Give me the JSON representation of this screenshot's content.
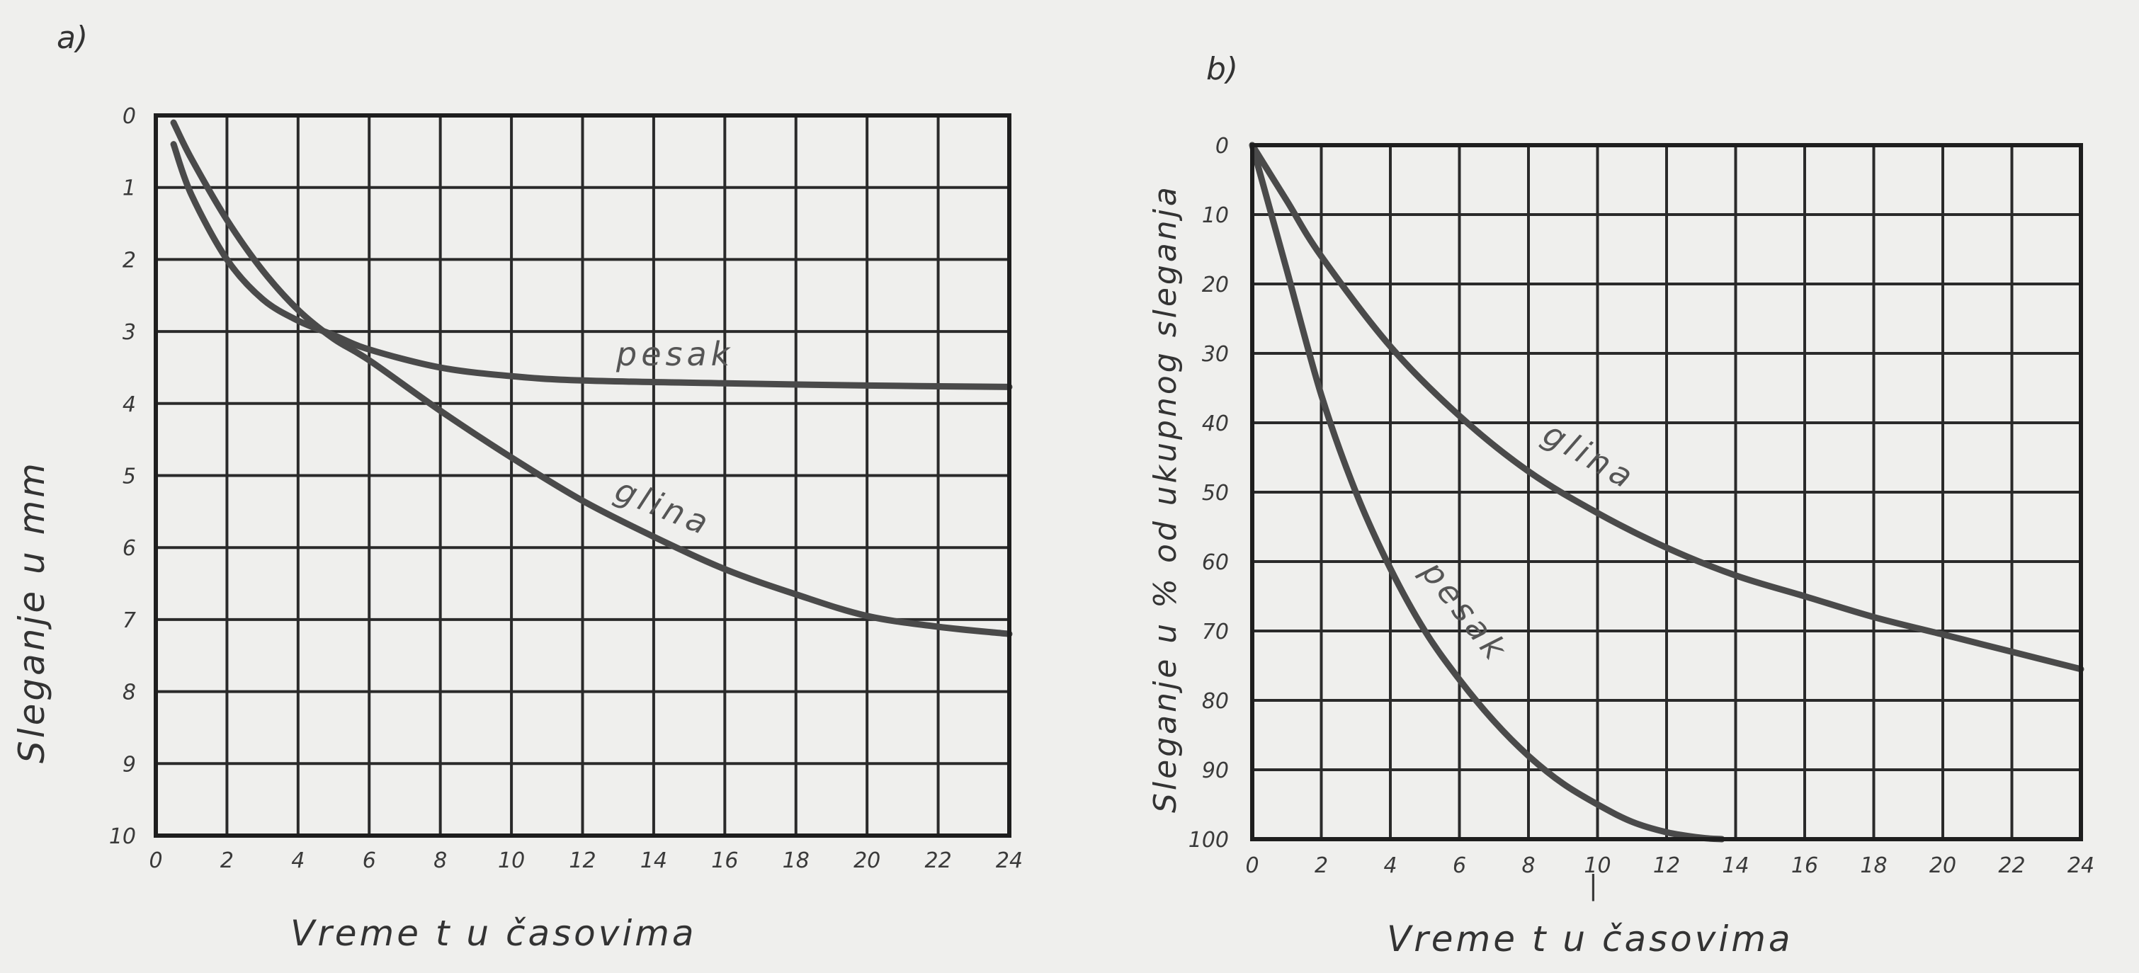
{
  "chart_data": [
    {
      "type": "line",
      "panel_label": "a)",
      "xlabel": "Vreme t u časovima",
      "ylabel": "Sleganje u mm",
      "xlim": [
        0,
        24
      ],
      "ylim": [
        0,
        10
      ],
      "y_inverted": true,
      "x_ticks": [
        0,
        2,
        4,
        6,
        8,
        10,
        12,
        14,
        16,
        18,
        20,
        22,
        24
      ],
      "y_ticks": [
        0,
        1,
        2,
        3,
        4,
        5,
        6,
        7,
        8,
        9,
        10
      ],
      "grid": true,
      "series": [
        {
          "name": "pesak",
          "x": [
            0.5,
            1,
            2,
            3,
            4,
            5,
            6,
            8,
            10,
            12,
            16,
            20,
            24
          ],
          "y": [
            0.4,
            1.1,
            2.0,
            2.55,
            2.85,
            3.05,
            3.25,
            3.5,
            3.62,
            3.68,
            3.72,
            3.75,
            3.77
          ]
        },
        {
          "name": "glina",
          "x": [
            0.5,
            1,
            2,
            3,
            4,
            5,
            6,
            8,
            10,
            12,
            14,
            16,
            18,
            20,
            22,
            24
          ],
          "y": [
            0.1,
            0.6,
            1.45,
            2.15,
            2.7,
            3.1,
            3.4,
            4.1,
            4.75,
            5.35,
            5.85,
            6.3,
            6.65,
            6.95,
            7.1,
            7.2
          ]
        }
      ]
    },
    {
      "type": "line",
      "panel_label": "b)",
      "xlabel": "Vreme t u časovima",
      "ylabel": "Sleganje u % od ukupnog sleganja",
      "xlim": [
        0,
        24
      ],
      "ylim": [
        0,
        100
      ],
      "y_inverted": true,
      "x_ticks": [
        0,
        2,
        4,
        6,
        8,
        10,
        12,
        14,
        16,
        18,
        20,
        22,
        24
      ],
      "y_ticks": [
        0,
        10,
        20,
        30,
        40,
        50,
        60,
        70,
        80,
        90,
        100
      ],
      "grid": true,
      "series": [
        {
          "name": "glina",
          "x": [
            0,
            1,
            2,
            4,
            6,
            8,
            10,
            12,
            14,
            16,
            18,
            20,
            22,
            24
          ],
          "y": [
            0,
            8,
            16,
            29,
            39,
            47,
            53,
            58,
            62,
            65,
            68,
            70.5,
            73,
            75.5
          ]
        },
        {
          "name": "pesak",
          "x": [
            0,
            1,
            2,
            3,
            4,
            5,
            6,
            7,
            8,
            9,
            10,
            11,
            12,
            13,
            13.6
          ],
          "y": [
            0,
            18,
            36,
            50,
            61,
            70,
            77,
            83,
            88,
            92,
            95,
            97.5,
            99,
            99.8,
            100
          ]
        }
      ]
    }
  ],
  "annotations": {
    "b_stray_mark": "|"
  }
}
